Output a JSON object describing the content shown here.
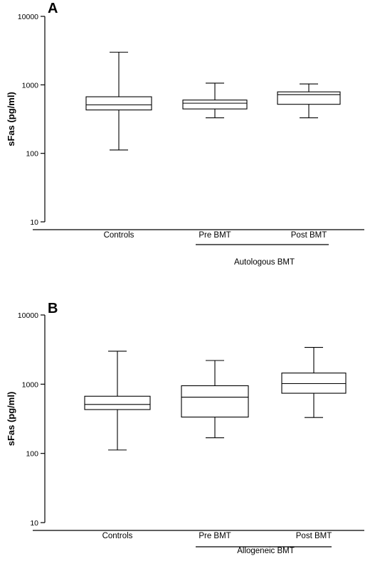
{
  "chart_data": [
    {
      "type": "box",
      "panel_label": "A",
      "ylabel": "sFas (pg/ml)",
      "yscale": "log",
      "ylim": [
        10,
        10000
      ],
      "yticks": [
        "10",
        "100",
        "1000",
        "10000"
      ],
      "grid": false,
      "group_label": "Autologous BMT",
      "group_members": [
        "Pre BMT",
        "Post BMT"
      ],
      "categories": [
        "Controls",
        "Pre BMT",
        "Post BMT"
      ],
      "boxes": [
        {
          "min": 112,
          "q1": 430,
          "median": 510,
          "q3": 670,
          "max": 3000
        },
        {
          "min": 330,
          "q1": 445,
          "median": 540,
          "q3": 600,
          "max": 1060
        },
        {
          "min": 330,
          "q1": 520,
          "median": 720,
          "q3": 790,
          "max": 1030
        }
      ]
    },
    {
      "type": "box",
      "panel_label": "B",
      "ylabel": "sFas (pg/ml)",
      "yscale": "log",
      "ylim": [
        10,
        10000
      ],
      "yticks": [
        "10",
        "100",
        "1000",
        "10000"
      ],
      "grid": false,
      "group_label": "Allogeneic BMT",
      "group_members": [
        "Pre BMT",
        "Post BMT"
      ],
      "categories": [
        "Controls",
        "Pre BMT",
        "Post BMT"
      ],
      "boxes": [
        {
          "min": 112,
          "q1": 430,
          "median": 510,
          "q3": 670,
          "max": 3000
        },
        {
          "min": 168,
          "q1": 335,
          "median": 650,
          "q3": 950,
          "max": 2200
        },
        {
          "min": 330,
          "q1": 740,
          "median": 1020,
          "q3": 1450,
          "max": 3400
        }
      ]
    }
  ]
}
